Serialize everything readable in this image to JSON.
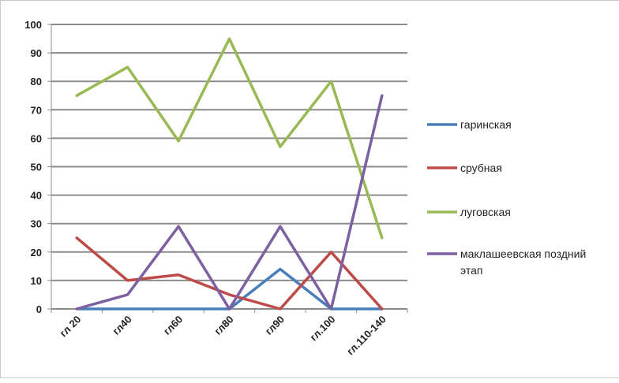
{
  "chart_data": {
    "type": "line",
    "categories": [
      "гл 20",
      "гл40",
      "гл60",
      "гл80",
      "гл90",
      "гл.100",
      "гл.110-140"
    ],
    "ylim": [
      0,
      100
    ],
    "yticks": [
      "0",
      "10",
      "20",
      "30",
      "40",
      "50",
      "60",
      "70",
      "80",
      "90",
      "100"
    ],
    "grid": true,
    "legend_position": "right",
    "series": [
      {
        "name": "гаринская",
        "color": "#4a7ebb",
        "values": [
          0,
          0,
          0,
          0,
          14,
          0,
          0
        ]
      },
      {
        "name": "срубная",
        "color": "#be4b48",
        "values": [
          25,
          10,
          12,
          5,
          0,
          20,
          0
        ]
      },
      {
        "name": "луговская",
        "color": "#98b954",
        "values": [
          75,
          85,
          59,
          95,
          57,
          80,
          25
        ]
      },
      {
        "name": "маклашеевская поздний этап",
        "color": "#7d60a0",
        "values": [
          0,
          5,
          29,
          0,
          29,
          0,
          75
        ]
      }
    ],
    "legend_lines": [
      [
        "гаринская"
      ],
      [
        "срубная"
      ],
      [
        "луговская"
      ],
      [
        "маклашеевская поздний",
        "этап"
      ]
    ]
  }
}
